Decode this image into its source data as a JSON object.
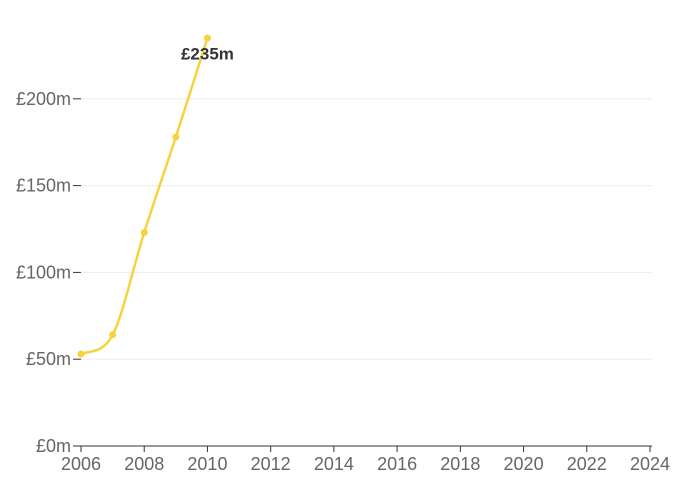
{
  "chart_data": {
    "type": "line",
    "title": "",
    "xlabel": "",
    "ylabel": "",
    "xlim": [
      2006,
      2024
    ],
    "ylim": [
      0,
      250
    ],
    "x_ticks": [
      2006,
      2008,
      2010,
      2012,
      2014,
      2016,
      2018,
      2020,
      2022,
      2024
    ],
    "x_tick_labels": [
      "2006",
      "2008",
      "2010",
      "2012",
      "2014",
      "2016",
      "2018",
      "2020",
      "2022",
      "2024"
    ],
    "y_ticks": [
      0,
      50,
      100,
      150,
      200
    ],
    "y_tick_labels": [
      "£0m",
      "£50m",
      "£100m",
      "£150m",
      "£200m"
    ],
    "grid": "horizontal",
    "series": [
      {
        "color": "#f5d33d",
        "x": [
          2006,
          2007,
          2008,
          2009,
          2010
        ],
        "values": [
          53,
          64,
          123,
          178,
          235
        ]
      }
    ],
    "annotations": [
      {
        "x": 2010,
        "y": 235,
        "text": "£235m"
      }
    ]
  }
}
